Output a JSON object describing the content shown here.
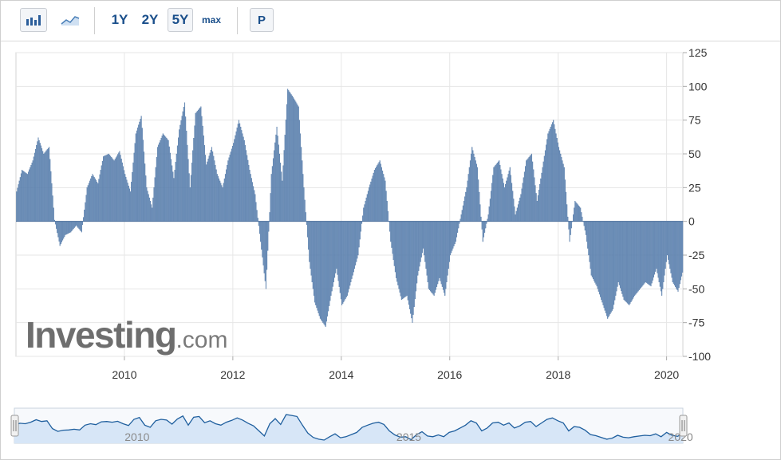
{
  "toolbar": {
    "bar_chart_icon": "bar-chart-icon",
    "line_chart_icon": "line-chart-icon",
    "ranges": [
      "1Y",
      "2Y",
      "5Y",
      "max"
    ],
    "active_range": "5Y",
    "p_label": "P"
  },
  "watermark": {
    "brand": "Investing",
    "suffix": ".com"
  },
  "colors": {
    "bar": "#6a8db8",
    "bar_edge": "#4f76a5",
    "grid": "#e6e6e6",
    "nav_fill": "#d7e6f7",
    "nav_line": "#1f5f9e"
  },
  "chart_data": {
    "type": "bar",
    "title": "",
    "xlabel": "",
    "ylabel": "",
    "x_range": [
      2008.0,
      2020.3
    ],
    "ylim": [
      -100,
      125
    ],
    "y_ticks": [
      125,
      100,
      75,
      50,
      25,
      0,
      -25,
      -50,
      -75,
      -100
    ],
    "x_ticks": [
      2010,
      2012,
      2014,
      2016,
      2018,
      2020
    ],
    "grid": true,
    "y_axis_side": "right",
    "series": [
      {
        "x": [
          2008.0,
          2008.1,
          2008.2,
          2008.3,
          2008.4,
          2008.5,
          2008.6,
          2008.7,
          2008.8,
          2008.9,
          2009.0,
          2009.1,
          2009.2,
          2009.3,
          2009.4,
          2009.5,
          2009.6,
          2009.7,
          2009.8,
          2009.9,
          2010.0,
          2010.1,
          2010.2,
          2010.3,
          2010.4,
          2010.5,
          2010.6,
          2010.7,
          2010.8,
          2010.9,
          2011.0,
          2011.1,
          2011.2,
          2011.3,
          2011.4,
          2011.5,
          2011.6,
          2011.7,
          2011.8,
          2011.9,
          2012.0,
          2012.1,
          2012.2,
          2012.3,
          2012.4,
          2012.5,
          2012.6,
          2012.7,
          2012.8,
          2012.9,
          2013.0,
          2013.1,
          2013.2,
          2013.3,
          2013.4,
          2013.5,
          2013.6,
          2013.7,
          2013.8,
          2013.9,
          2014.0,
          2014.1,
          2014.2,
          2014.3,
          2014.4,
          2014.5,
          2014.6,
          2014.7,
          2014.8,
          2014.9,
          2015.0,
          2015.1,
          2015.2,
          2015.3,
          2015.4,
          2015.5,
          2015.6,
          2015.7,
          2015.8,
          2015.9,
          2016.0,
          2016.1,
          2016.2,
          2016.3,
          2016.4,
          2016.5,
          2016.6,
          2016.7,
          2016.8,
          2016.9,
          2017.0,
          2017.1,
          2017.2,
          2017.3,
          2017.4,
          2017.5,
          2017.6,
          2017.7,
          2017.8,
          2017.9,
          2018.0,
          2018.1,
          2018.2,
          2018.3,
          2018.4,
          2018.5,
          2018.6,
          2018.7,
          2018.8,
          2018.9,
          2019.0,
          2019.1,
          2019.2,
          2019.3,
          2019.4,
          2019.5,
          2019.6,
          2019.7,
          2019.8,
          2019.9,
          2020.0,
          2020.1,
          2020.2,
          2020.3
        ],
        "values": [
          22,
          38,
          35,
          45,
          62,
          50,
          55,
          1,
          -18,
          -10,
          -8,
          -3,
          -8,
          25,
          35,
          28,
          48,
          50,
          45,
          52,
          35,
          22,
          65,
          78,
          25,
          10,
          55,
          65,
          60,
          32,
          68,
          88,
          25,
          80,
          85,
          42,
          55,
          35,
          25,
          45,
          58,
          75,
          60,
          38,
          20,
          -15,
          -50,
          35,
          70,
          30,
          98,
          92,
          85,
          25,
          -30,
          -60,
          -72,
          -78,
          -55,
          -35,
          -62,
          -55,
          -40,
          -25,
          10,
          25,
          38,
          45,
          30,
          -15,
          -42,
          -58,
          -55,
          -75,
          -40,
          -20,
          -50,
          -55,
          -42,
          -55,
          -25,
          -15,
          5,
          25,
          55,
          40,
          -15,
          5,
          40,
          45,
          25,
          40,
          5,
          20,
          45,
          50,
          15,
          40,
          65,
          75,
          55,
          40,
          -15,
          15,
          10,
          -10,
          -40,
          -48,
          -60,
          -72,
          -65,
          -45,
          -58,
          -62,
          -55,
          -50,
          -45,
          -48,
          -35,
          -55,
          -25,
          -45,
          -52,
          -35
        ]
      }
    ]
  },
  "navigator": {
    "x_ticks": [
      2010,
      2015,
      2020
    ],
    "range": [
      2008.0,
      2020.3
    ]
  }
}
